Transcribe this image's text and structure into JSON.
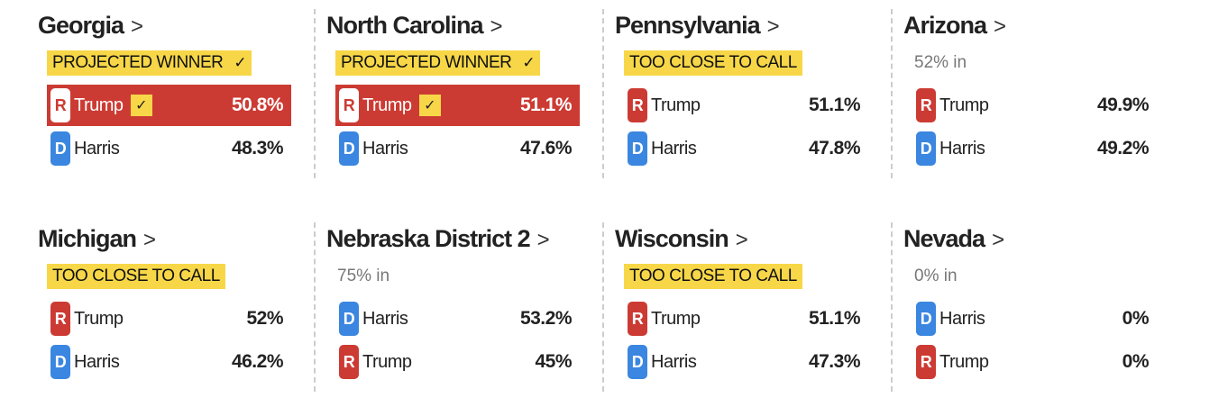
{
  "colors": {
    "republican": "#cc3b33",
    "democrat": "#3a86e0",
    "badge": "#f7d748"
  },
  "labels": {
    "projected": "PROJECTED WINNER",
    "too_close": "TOO CLOSE TO CALL",
    "chevron": ">",
    "check": "✓"
  },
  "races": [
    {
      "state": "Georgia",
      "status": "projected",
      "status_text": "PROJECTED WINNER",
      "candidates": [
        {
          "party": "R",
          "name": "Trump",
          "pct": "50.8%",
          "winner": true
        },
        {
          "party": "D",
          "name": "Harris",
          "pct": "48.3%",
          "winner": false
        }
      ]
    },
    {
      "state": "North Carolina",
      "status": "projected",
      "status_text": "PROJECTED WINNER",
      "candidates": [
        {
          "party": "R",
          "name": "Trump",
          "pct": "51.1%",
          "winner": true
        },
        {
          "party": "D",
          "name": "Harris",
          "pct": "47.6%",
          "winner": false
        }
      ]
    },
    {
      "state": "Pennsylvania",
      "status": "too_close",
      "status_text": "TOO CLOSE TO CALL",
      "candidates": [
        {
          "party": "R",
          "name": "Trump",
          "pct": "51.1%",
          "winner": false
        },
        {
          "party": "D",
          "name": "Harris",
          "pct": "47.8%",
          "winner": false
        }
      ]
    },
    {
      "state": "Arizona",
      "status": "pct_in",
      "status_text": "52% in",
      "candidates": [
        {
          "party": "R",
          "name": "Trump",
          "pct": "49.9%",
          "winner": false
        },
        {
          "party": "D",
          "name": "Harris",
          "pct": "49.2%",
          "winner": false
        }
      ]
    },
    {
      "state": "Michigan",
      "status": "too_close",
      "status_text": "TOO CLOSE TO CALL",
      "candidates": [
        {
          "party": "R",
          "name": "Trump",
          "pct": "52%",
          "winner": false
        },
        {
          "party": "D",
          "name": "Harris",
          "pct": "46.2%",
          "winner": false
        }
      ]
    },
    {
      "state": "Nebraska District 2",
      "status": "pct_in",
      "status_text": "75% in",
      "candidates": [
        {
          "party": "D",
          "name": "Harris",
          "pct": "53.2%",
          "winner": false
        },
        {
          "party": "R",
          "name": "Trump",
          "pct": "45%",
          "winner": false
        }
      ]
    },
    {
      "state": "Wisconsin",
      "status": "too_close",
      "status_text": "TOO CLOSE TO CALL",
      "candidates": [
        {
          "party": "R",
          "name": "Trump",
          "pct": "51.1%",
          "winner": false
        },
        {
          "party": "D",
          "name": "Harris",
          "pct": "47.3%",
          "winner": false
        }
      ]
    },
    {
      "state": "Nevada",
      "status": "pct_in",
      "status_text": "0% in",
      "candidates": [
        {
          "party": "D",
          "name": "Harris",
          "pct": "0%",
          "winner": false
        },
        {
          "party": "R",
          "name": "Trump",
          "pct": "0%",
          "winner": false
        }
      ]
    }
  ]
}
